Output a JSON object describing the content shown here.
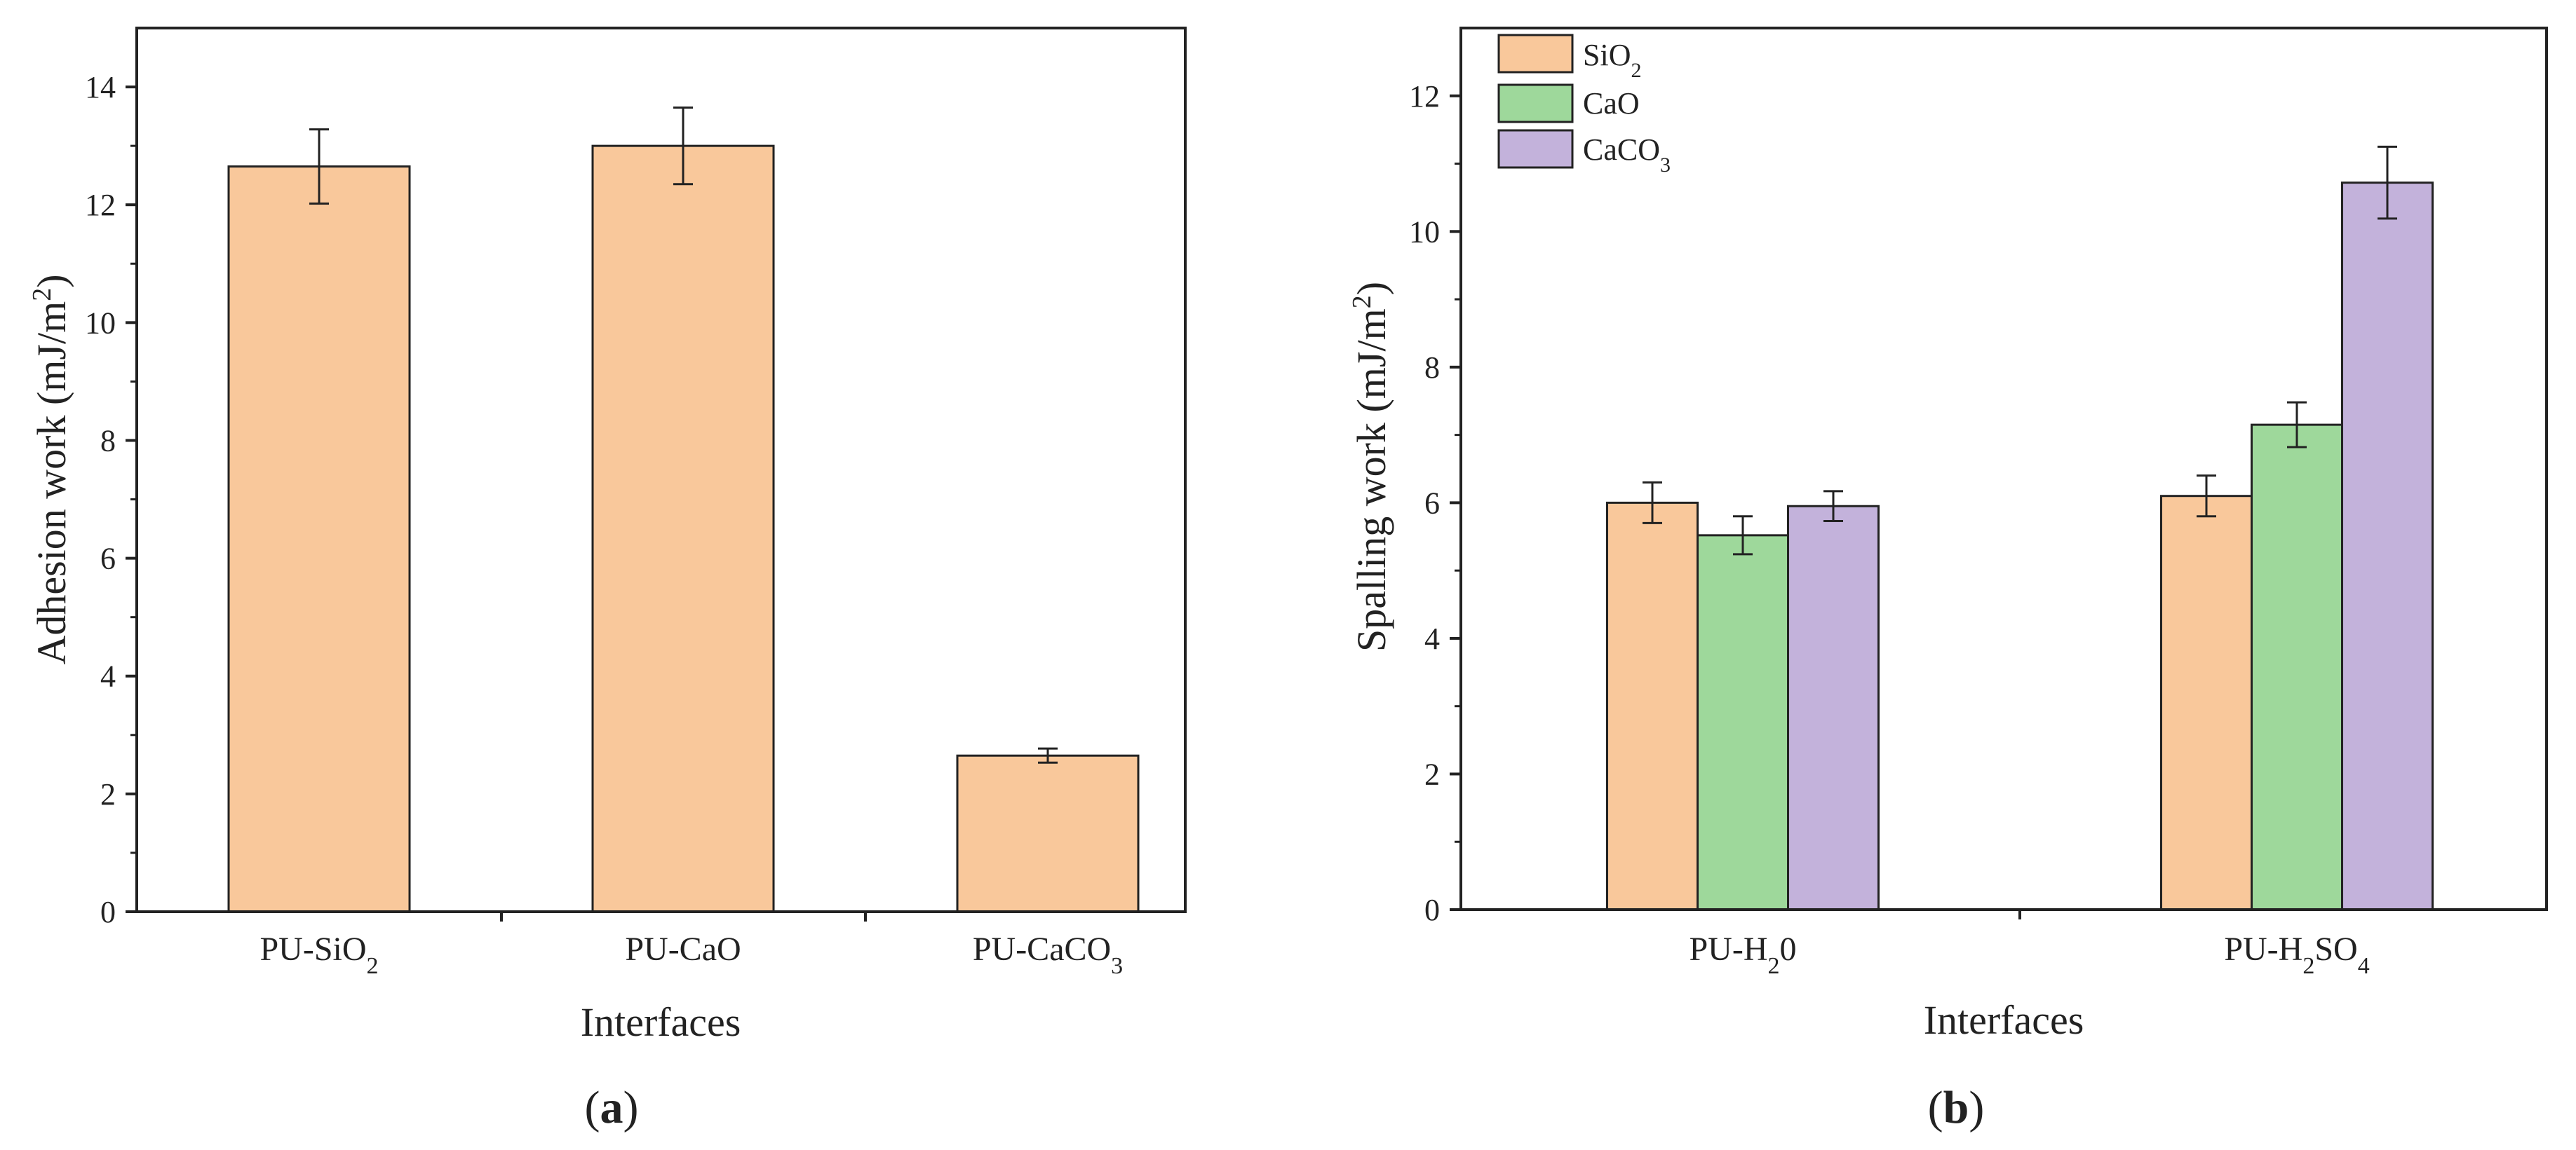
{
  "figure": {
    "panels": [
      {
        "open": "(",
        "letter": "a",
        "close": ")"
      },
      {
        "open": "(",
        "letter": "b",
        "close": ")"
      }
    ]
  },
  "chart_data": [
    {
      "type": "bar",
      "panel": "a",
      "title": "",
      "xlabel": "Interfaces",
      "ylabel": {
        "main": "Adhesion work (mJ/m",
        "sup": "2",
        "close": ")"
      },
      "categories": [
        {
          "main": "PU-SiO",
          "sub": "2",
          "tail": ""
        },
        {
          "main": "PU-CaO",
          "sub": "",
          "tail": ""
        },
        {
          "main": "PU-CaCO",
          "sub": "3",
          "tail": ""
        }
      ],
      "series": [
        {
          "name": "Adhesion work",
          "color": "#F9C89B",
          "values": [
            12.65,
            13.0,
            2.65
          ],
          "errors": [
            0.63,
            0.65,
            0.12
          ]
        }
      ],
      "ylim": [
        0,
        15
      ],
      "yticks": [
        0,
        2,
        4,
        6,
        8,
        10,
        12,
        14
      ],
      "grid": false,
      "legend": "none"
    },
    {
      "type": "bar",
      "panel": "b",
      "title": "",
      "xlabel": "Interfaces",
      "ylabel": {
        "main": "Spalling work (mJ/m",
        "sup": "2",
        "close": ")"
      },
      "categories": [
        {
          "main": "PU-H",
          "sub": "2",
          "tail": "0"
        },
        {
          "main": "PU-H",
          "sub": "2",
          "tail": "SO",
          "sub2": "4"
        }
      ],
      "series": [
        {
          "name": {
            "main": "SiO",
            "sub": "2"
          },
          "color": "#F9C89B",
          "values": [
            6.0,
            6.1
          ],
          "errors": [
            0.3,
            0.3
          ]
        },
        {
          "name": {
            "main": "CaO",
            "sub": ""
          },
          "color": "#9ED89B",
          "values": [
            5.52,
            7.15
          ],
          "errors": [
            0.28,
            0.33
          ]
        },
        {
          "name": {
            "main": "CaCO",
            "sub": "3"
          },
          "color": "#C3B2DB",
          "values": [
            5.95,
            10.72
          ],
          "errors": [
            0.22,
            0.53
          ]
        }
      ],
      "ylim": [
        0,
        13
      ],
      "yticks": [
        0,
        2,
        4,
        6,
        8,
        10,
        12
      ],
      "grid": false,
      "legend": "top-left"
    }
  ]
}
